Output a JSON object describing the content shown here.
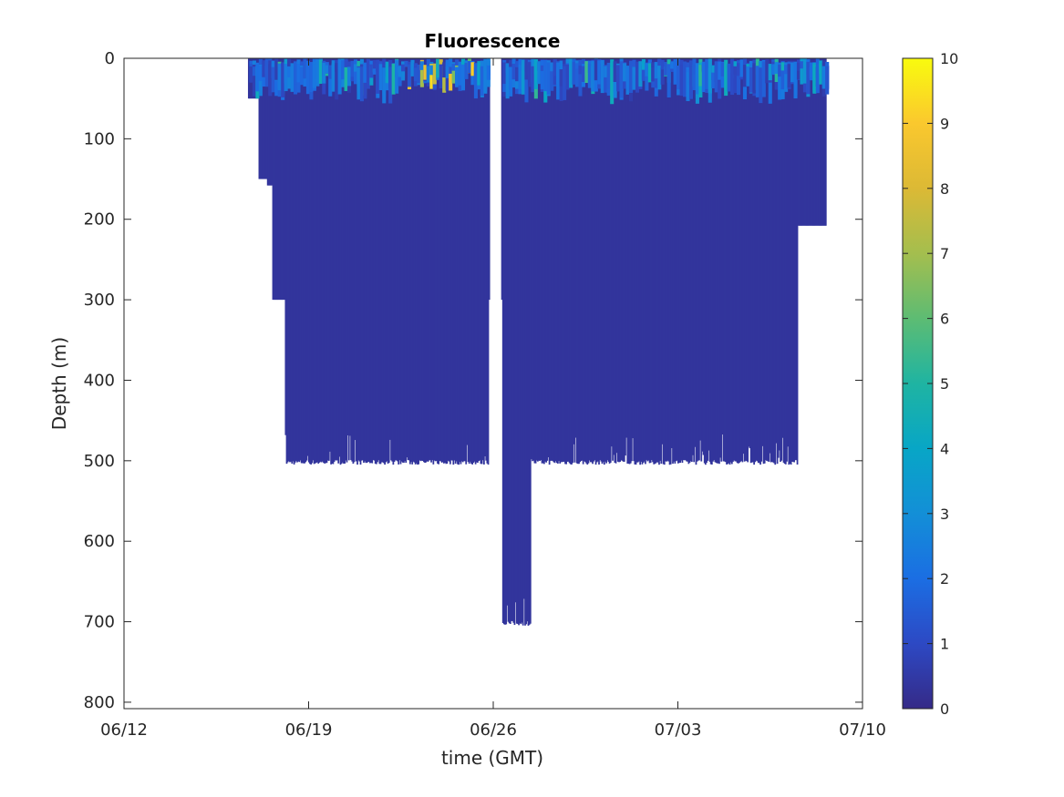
{
  "chart_data": {
    "type": "heatmap",
    "title": "Fluorescence",
    "xlabel": "time (GMT)",
    "ylabel": "Depth (m)",
    "x_ticks": [
      "06/12",
      "06/19",
      "06/26",
      "07/03",
      "07/10"
    ],
    "y_ticks": [
      0,
      100,
      200,
      300,
      400,
      500,
      600,
      700,
      800
    ],
    "xlim_days_from_0612": [
      0,
      28
    ],
    "ylim": [
      0,
      808
    ],
    "y_reversed": true,
    "grid": false,
    "colorbar": {
      "ticks": [
        0,
        1,
        2,
        3,
        4,
        5,
        6,
        7,
        8,
        9,
        10
      ],
      "range": [
        0,
        10
      ],
      "colormap": "parula",
      "colors": [
        "#352a87",
        "#2d49c4",
        "#1b6ee3",
        "#138fd7",
        "#08a6c6",
        "#1fb4a2",
        "#5dbc73",
        "#a4be4e",
        "#dcb935",
        "#fac82e",
        "#f9fb0e"
      ]
    },
    "coverage_profile": {
      "description": "maximum sampled depth (m) over time",
      "days": [
        4.7,
        5.1,
        5.4,
        5.6,
        6.1,
        6.5,
        13.4,
        13.8,
        14.3,
        15.4,
        24.9,
        25.5,
        26.6
      ],
      "max_depth_m": [
        50,
        150,
        158,
        300,
        505,
        505,
        505,
        300,
        705,
        505,
        505,
        208,
        105
      ]
    },
    "surface_layer": {
      "description": "elevated fluorescence in upper 0-60 m",
      "typical_value": 1.5,
      "peak_value": 9.5,
      "peak_days": [
        10.5,
        13.2
      ]
    }
  }
}
